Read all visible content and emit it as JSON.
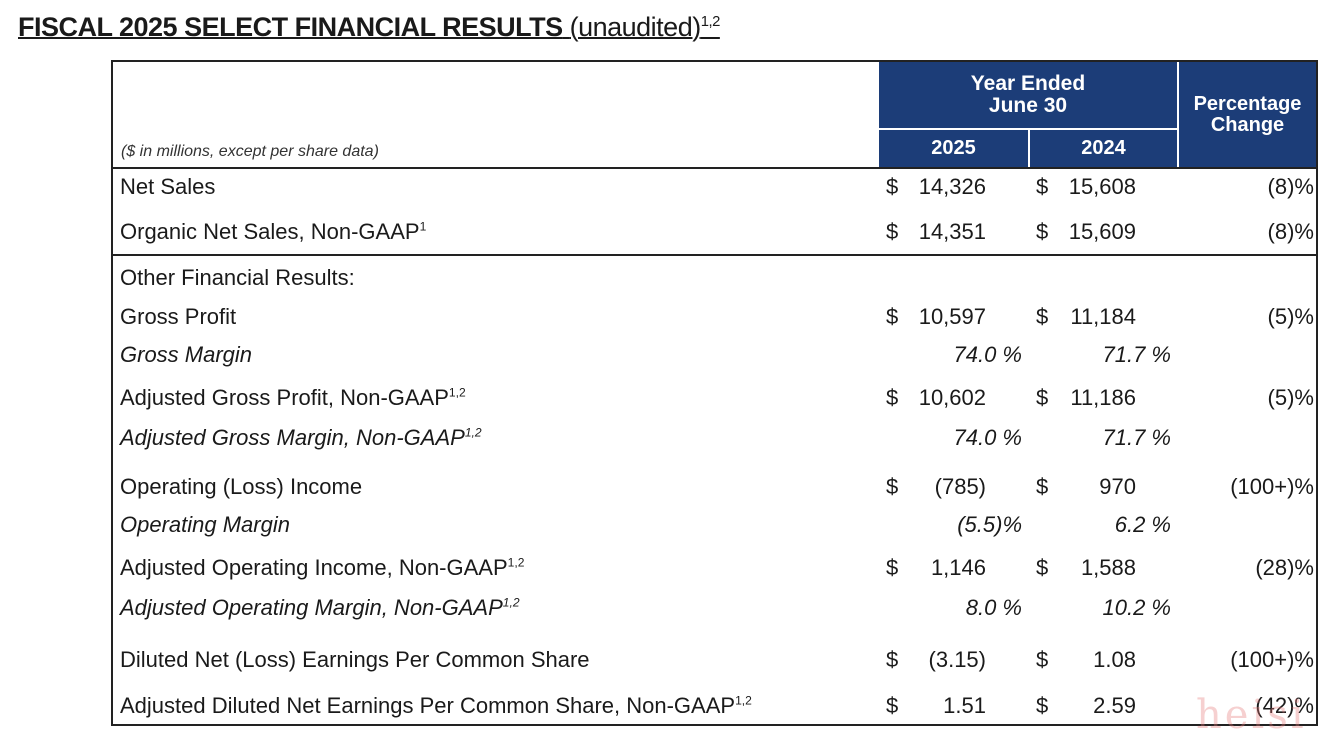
{
  "title": {
    "main": "FISCAL 2025 SELECT FINANCIAL RESULTS",
    "sub": "(unaudited)",
    "sup": "1,2"
  },
  "header": {
    "units": "($ in millions, except per share data)",
    "year_ended_1": "Year Ended",
    "year_ended_2": "June 30",
    "col_2025": "2025",
    "col_2024": "2024",
    "pct_1": "Percentage",
    "pct_2": "Change"
  },
  "rows": [
    {
      "label": "Net Sales",
      "sup": "",
      "d1": "$",
      "v1": "14,326",
      "d2": "$",
      "v2": "15,608",
      "pct": "(8)%"
    },
    {
      "label": "Organic Net Sales, Non-GAAP",
      "sup": "1",
      "d1": "$",
      "v1": "14,351",
      "d2": "$",
      "v2": "15,609",
      "pct": "(8)%"
    },
    {
      "label": "Other Financial Results:"
    },
    {
      "label": "Gross Profit",
      "sup": "",
      "d1": "$",
      "v1": "10,597",
      "d2": "$",
      "v2": "11,184",
      "pct": "(5)%"
    },
    {
      "label": "Gross Margin",
      "sup": "",
      "m1": "74.0 %",
      "m2": "71.7 %"
    },
    {
      "label": "Adjusted Gross Profit, Non-GAAP",
      "sup": "1,2",
      "d1": "$",
      "v1": "10,602",
      "d2": "$",
      "v2": "11,186",
      "pct": "(5)%"
    },
    {
      "label": "Adjusted Gross Margin, Non-GAAP",
      "sup": "1,2",
      "m1": "74.0 %",
      "m2": "71.7 %"
    },
    {
      "label": "Operating (Loss) Income",
      "sup": "",
      "d1": "$",
      "v1": "(785)",
      "d2": "$",
      "v2": "970",
      "pct": "(100+)%"
    },
    {
      "label": "Operating Margin",
      "sup": "",
      "m1": "(5.5)%",
      "m2": "6.2 %"
    },
    {
      "label": "Adjusted Operating Income, Non-GAAP",
      "sup": "1,2",
      "d1": "$",
      "v1": "1,146",
      "d2": "$",
      "v2": "1,588",
      "pct": "(28)%"
    },
    {
      "label": "Adjusted Operating Margin, Non-GAAP",
      "sup": "1,2",
      "m1": "8.0 %",
      "m2": "10.2 %"
    },
    {
      "label": "Diluted Net (Loss) Earnings Per Common Share",
      "sup": "",
      "d1": "$",
      "v1": "(3.15)",
      "d2": "$",
      "v2": "1.08",
      "pct": "(100+)%"
    },
    {
      "label": "Adjusted Diluted Net Earnings Per Common Share, Non-GAAP",
      "sup": "1,2",
      "d1": "$",
      "v1": "1.51",
      "d2": "$",
      "v2": "2.59",
      "pct": "(42)%"
    }
  ],
  "watermark": "heisi"
}
